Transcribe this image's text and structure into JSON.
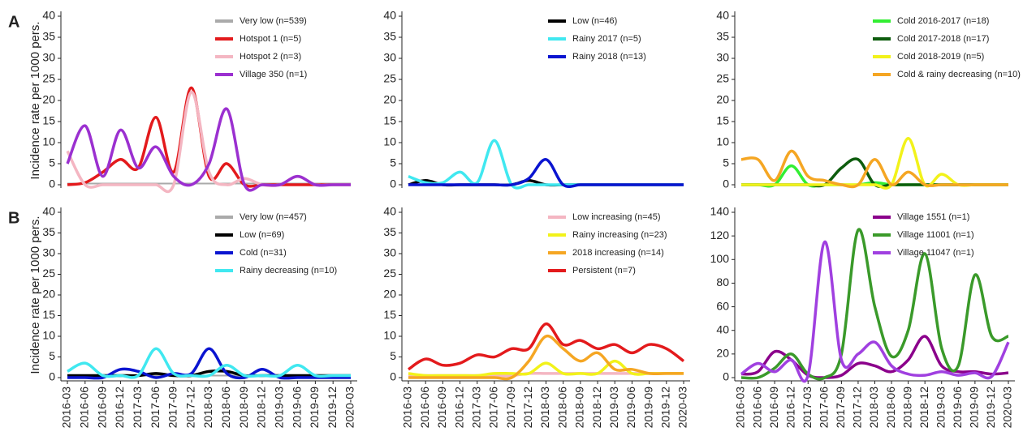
{
  "chart_data": [
    {
      "type": "line",
      "panel": "A",
      "ylabel": "Incidence rate per 1000 pers.",
      "ylim": [
        0,
        40
      ],
      "yticks": [
        0,
        5,
        10,
        15,
        20,
        25,
        30,
        35,
        40
      ],
      "legend": "top-right",
      "series": [
        {
          "name": "Very low (n=539)",
          "color": "#aaaaaa",
          "values": [
            0.3,
            0.3,
            0.3,
            0.3,
            0.3,
            0.3,
            0.3,
            0.3,
            0.3,
            0.3,
            0.3,
            0.3,
            0.3,
            0.3,
            0.3,
            0.3,
            0.3
          ]
        },
        {
          "name": "Hotspot 1 (n=5)",
          "color": "#e31a1c",
          "values": [
            0,
            0.5,
            3,
            6,
            4,
            16,
            3,
            23,
            2,
            5,
            0,
            0,
            0,
            0,
            0,
            0,
            0
          ]
        },
        {
          "name": "Hotspot 2 (n=3)",
          "color": "#f4b6c2",
          "values": [
            8,
            0,
            0,
            0,
            0,
            0,
            0,
            22,
            3,
            0,
            1.5,
            0,
            0,
            2,
            0,
            0,
            0
          ]
        },
        {
          "name": "Village 350 (n=1)",
          "color": "#9b30d0",
          "values": [
            5,
            14,
            2,
            13,
            4,
            9,
            2,
            0,
            5,
            18,
            0,
            0,
            0,
            2,
            0,
            0,
            0
          ]
        }
      ]
    },
    {
      "type": "line",
      "ylim": [
        0,
        40
      ],
      "yticks": [
        0,
        5,
        10,
        15,
        20,
        25,
        30,
        35,
        40
      ],
      "legend": "top-right",
      "series": [
        {
          "name": "Low (n=46)",
          "color": "#000000",
          "values": [
            0,
            1,
            0,
            0,
            0,
            0,
            0,
            1,
            0,
            0,
            0,
            0,
            0,
            0,
            0,
            0,
            0
          ]
        },
        {
          "name": "Rainy 2017 (n=5)",
          "color": "#40e8f0",
          "values": [
            2,
            0.5,
            0.5,
            3,
            0.5,
            10.5,
            0,
            0,
            0,
            0,
            0,
            0,
            0,
            0,
            0,
            0,
            0
          ]
        },
        {
          "name": "Rainy 2018 (n=13)",
          "color": "#0a14d0",
          "values": [
            0,
            0,
            0,
            0,
            0,
            0,
            0,
            1.5,
            6,
            0,
            0,
            0,
            0,
            0,
            0,
            0,
            0
          ]
        }
      ]
    },
    {
      "type": "line",
      "ylim": [
        0,
        40
      ],
      "yticks": [
        0,
        5,
        10,
        15,
        20,
        25,
        30,
        35,
        40
      ],
      "legend": "top-right",
      "series": [
        {
          "name": "Cold 2016-2017 (n=18)",
          "color": "#33ee33",
          "values": [
            0,
            0,
            0,
            4.5,
            0,
            0,
            0,
            0,
            0.5,
            0,
            0,
            0,
            0,
            0,
            0,
            0,
            0
          ]
        },
        {
          "name": "Cold 2017-2018 (n=17)",
          "color": "#0d5c0d",
          "values": [
            0,
            0,
            0,
            0,
            0,
            0,
            4,
            6,
            0,
            0,
            0,
            0,
            0,
            0,
            0,
            0,
            0
          ]
        },
        {
          "name": "Cold 2018-2019 (n=5)",
          "color": "#f2f21a",
          "values": [
            0,
            0,
            0,
            0,
            0,
            0,
            0,
            0,
            0,
            0,
            11,
            0,
            2.5,
            0,
            0,
            0,
            0
          ]
        },
        {
          "name": "Cold & rainy decreasing (n=10)",
          "color": "#f5a623",
          "values": [
            6,
            6,
            1,
            8,
            2,
            1,
            0,
            0,
            6,
            0,
            3,
            0,
            0,
            0,
            0,
            0,
            0
          ]
        }
      ]
    },
    {
      "type": "line",
      "panel": "B",
      "ylabel": "Incidence rate per 1000 pers.",
      "ylim": [
        0,
        40
      ],
      "yticks": [
        0,
        5,
        10,
        15,
        20,
        25,
        30,
        35,
        40
      ],
      "legend": "top-right",
      "categories": [
        "2016-03",
        "2016-06",
        "2016-09",
        "2016-12",
        "2017-03",
        "2017-06",
        "2017-09",
        "2017-12",
        "2018-03",
        "2018-06",
        "2018-09",
        "2018-12",
        "2019-03",
        "2019-06",
        "2019-09",
        "2019-12",
        "2020-03"
      ],
      "series": [
        {
          "name": "Very low (n=457)",
          "color": "#aaaaaa",
          "values": [
            0.5,
            0.5,
            0.5,
            0.5,
            0.5,
            0.5,
            0.5,
            0.5,
            0.5,
            0.5,
            0.5,
            0.5,
            0.5,
            0.5,
            0.5,
            0.5,
            0.5
          ]
        },
        {
          "name": "Low (n=69)",
          "color": "#000000",
          "values": [
            0.5,
            0.5,
            0.5,
            0.5,
            0.5,
            1,
            0.5,
            0.5,
            1.5,
            1.5,
            0.5,
            0.5,
            0.5,
            0.5,
            0.5,
            0.5,
            0.5
          ]
        },
        {
          "name": "Cold (n=31)",
          "color": "#0a14d0",
          "values": [
            0,
            0,
            0,
            2,
            1.5,
            0,
            1,
            1,
            7,
            1,
            0,
            2,
            0,
            0,
            0,
            0,
            0
          ]
        },
        {
          "name": "Rainy decreasing (n=10)",
          "color": "#40e8f0",
          "values": [
            1.5,
            3.5,
            0.5,
            0.5,
            0.5,
            7,
            1,
            0.5,
            0.5,
            3,
            0.5,
            0.5,
            0.5,
            3,
            0.5,
            0.5,
            0.5
          ]
        }
      ]
    },
    {
      "type": "line",
      "ylim": [
        0,
        40
      ],
      "yticks": [
        0,
        5,
        10,
        15,
        20,
        25,
        30,
        35,
        40
      ],
      "legend": "top-right",
      "categories": [
        "2016-03",
        "2016-06",
        "2016-09",
        "2016-12",
        "2017-03",
        "2017-06",
        "2017-09",
        "2017-12",
        "2018-03",
        "2018-06",
        "2018-09",
        "2018-12",
        "2019-03",
        "2019-06",
        "2019-09",
        "2019-12",
        "2020-03"
      ],
      "series": [
        {
          "name": "Low increasing (n=45)",
          "color": "#f4b6c2",
          "values": [
            0.5,
            0.5,
            0.5,
            0.5,
            0.5,
            0.5,
            0.5,
            1,
            1,
            1,
            1,
            1,
            1,
            1,
            1,
            1,
            1
          ]
        },
        {
          "name": "Rainy increasing (n=23)",
          "color": "#f2f21a",
          "values": [
            1,
            0.5,
            0.5,
            0.5,
            0.5,
            1,
            1,
            1,
            3.5,
            1,
            1,
            1,
            4,
            1,
            1,
            1,
            1
          ]
        },
        {
          "name": "2018 increasing (n=14)",
          "color": "#f5a623",
          "values": [
            0,
            0,
            0,
            0,
            0,
            0,
            0,
            4,
            10,
            7,
            4,
            6,
            2,
            2,
            1,
            1,
            1
          ]
        },
        {
          "name": "Persistent (n=7)",
          "color": "#e31a1c",
          "values": [
            2,
            4.5,
            3,
            3.5,
            5.5,
            5,
            7,
            7,
            13,
            8,
            9,
            7,
            8,
            6,
            8,
            7,
            4
          ]
        }
      ]
    },
    {
      "type": "line",
      "ylim": [
        0,
        140
      ],
      "yticks": [
        0,
        20,
        40,
        60,
        80,
        100,
        120,
        140
      ],
      "legend": "top-right",
      "categories": [
        "2016-03",
        "2016-06",
        "2016-09",
        "2016-12",
        "2017-03",
        "2017-06",
        "2017-09",
        "2017-12",
        "2018-03",
        "2018-06",
        "2018-09",
        "2018-12",
        "2019-03",
        "2019-06",
        "2019-09",
        "2019-12",
        "2020-03"
      ],
      "series": [
        {
          "name": "Village 1551 (n=1)",
          "color": "#8b008b",
          "values": [
            3,
            5,
            22,
            15,
            2,
            0,
            2,
            12,
            10,
            5,
            15,
            35,
            10,
            5,
            5,
            3,
            4
          ]
        },
        {
          "name": "Village 11001 (n=1)",
          "color": "#3a9a2a",
          "values": [
            0,
            0,
            8,
            20,
            3,
            0,
            20,
            125,
            60,
            18,
            40,
            105,
            25,
            10,
            87,
            35,
            35
          ]
        },
        {
          "name": "Village 11047 (n=1)",
          "color": "#a040e0",
          "values": [
            3,
            12,
            5,
            15,
            2,
            115,
            15,
            20,
            30,
            10,
            3,
            2,
            5,
            2,
            4,
            1,
            30
          ]
        }
      ]
    }
  ]
}
